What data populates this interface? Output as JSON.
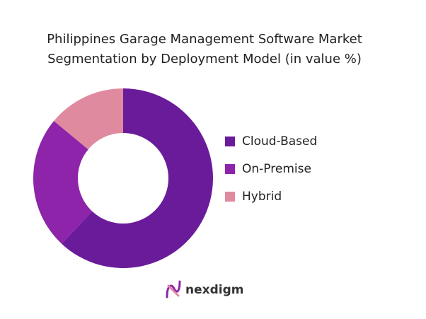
{
  "chart_data": {
    "type": "donut",
    "title": [
      "Philippines Garage Management Software Market",
      "Segmentation by Deployment Model (in value %)"
    ],
    "categories": [
      "Cloud-Based",
      "On-Premise",
      "Hybrid"
    ],
    "values": [
      62,
      24,
      14
    ],
    "colors": [
      "#6a1b9a",
      "#8e24aa",
      "#e08aa0"
    ],
    "legend": "right"
  },
  "logo": "nexdigm"
}
